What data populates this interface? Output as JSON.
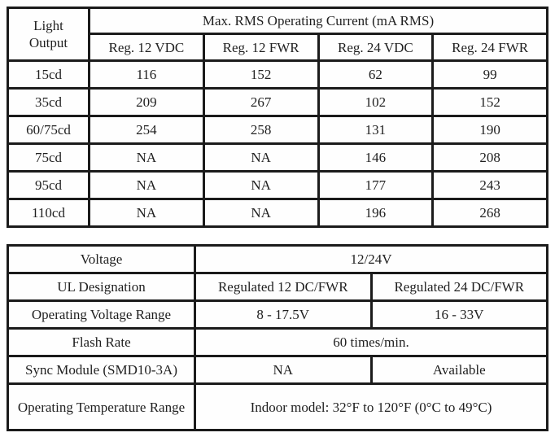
{
  "table1": {
    "corner_header": "Light Output",
    "main_header": "Max. RMS Operating Current (mA RMS)",
    "columns": [
      "Reg. 12 VDC",
      "Reg. 12 FWR",
      "Reg. 24 VDC",
      "Reg. 24 FWR"
    ],
    "rows": [
      {
        "label": "15cd",
        "values": [
          "116",
          "152",
          "62",
          "99"
        ]
      },
      {
        "label": "35cd",
        "values": [
          "209",
          "267",
          "102",
          "152"
        ]
      },
      {
        "label": "60/75cd",
        "values": [
          "254",
          "258",
          "131",
          "190"
        ]
      },
      {
        "label": "75cd",
        "values": [
          "NA",
          "NA",
          "146",
          "208"
        ]
      },
      {
        "label": "95cd",
        "values": [
          "NA",
          "NA",
          "177",
          "243"
        ]
      },
      {
        "label": "110cd",
        "values": [
          "NA",
          "NA",
          "196",
          "268"
        ]
      }
    ]
  },
  "table2": {
    "rows": [
      {
        "label": "Voltage",
        "span": "12/24V"
      },
      {
        "label": "UL Designation",
        "col1": "Regulated 12 DC/FWR",
        "col2": "Regulated 24 DC/FWR"
      },
      {
        "label": "Operating Voltage Range",
        "col1": "8 - 17.5V",
        "col2": "16 - 33V"
      },
      {
        "label": "Flash Rate",
        "span": "60 times/min."
      },
      {
        "label": "Sync Module (SMD10-3A)",
        "col1": "NA",
        "col2": "Available"
      },
      {
        "label": "Operating Temperature Range",
        "span": "Indoor model: 32°F to 120°F (0°C to 49°C)"
      }
    ]
  },
  "colors": {
    "border": "#1b1b1b",
    "text": "#1f1f1f",
    "background": "#ffffff"
  }
}
